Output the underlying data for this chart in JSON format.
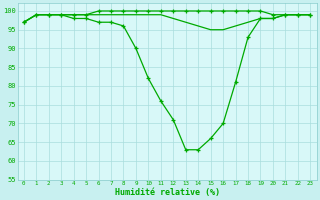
{
  "xlabel": "Humidité relative (%)",
  "background_color": "#c8f0f0",
  "plot_bg_color": "#d8f8f8",
  "grid_color": "#aadddd",
  "line_color": "#00aa00",
  "xlim": [
    -0.5,
    23.5
  ],
  "ylim": [
    55,
    102
  ],
  "yticks": [
    55,
    60,
    65,
    70,
    75,
    80,
    85,
    90,
    95,
    100
  ],
  "xticks": [
    0,
    1,
    2,
    3,
    4,
    5,
    6,
    7,
    8,
    9,
    10,
    11,
    12,
    13,
    14,
    15,
    16,
    17,
    18,
    19,
    20,
    21,
    22,
    23
  ],
  "series1_x": [
    0,
    1,
    2,
    3,
    4,
    5,
    6,
    7,
    8,
    9,
    10,
    11,
    12,
    13,
    14,
    15,
    16,
    17,
    18,
    19,
    20,
    21,
    22,
    23
  ],
  "series1_y": [
    97,
    99,
    99,
    99,
    99,
    99,
    100,
    100,
    100,
    100,
    100,
    100,
    100,
    100,
    100,
    100,
    100,
    100,
    100,
    100,
    99,
    99,
    99,
    99
  ],
  "series2_x": [
    0,
    1,
    2,
    3,
    4,
    5,
    6,
    7,
    8,
    9,
    10,
    11,
    12,
    13,
    14,
    15,
    16,
    17,
    18,
    19,
    20,
    21,
    22,
    23
  ],
  "series2_y": [
    97,
    99,
    99,
    99,
    99,
    99,
    99,
    99,
    99,
    99,
    99,
    99,
    98,
    97,
    96,
    95,
    95,
    96,
    97,
    98,
    98,
    99,
    99,
    99
  ],
  "series3_x": [
    0,
    1,
    2,
    3,
    4,
    5,
    6,
    7,
    8,
    9,
    10,
    11,
    12,
    13,
    14,
    15,
    16,
    17,
    18,
    19,
    20,
    21,
    22,
    23
  ],
  "series3_y": [
    97,
    99,
    99,
    99,
    98,
    98,
    97,
    97,
    96,
    90,
    82,
    76,
    71,
    63,
    63,
    66,
    70,
    81,
    93,
    98,
    98,
    99,
    99,
    99
  ]
}
